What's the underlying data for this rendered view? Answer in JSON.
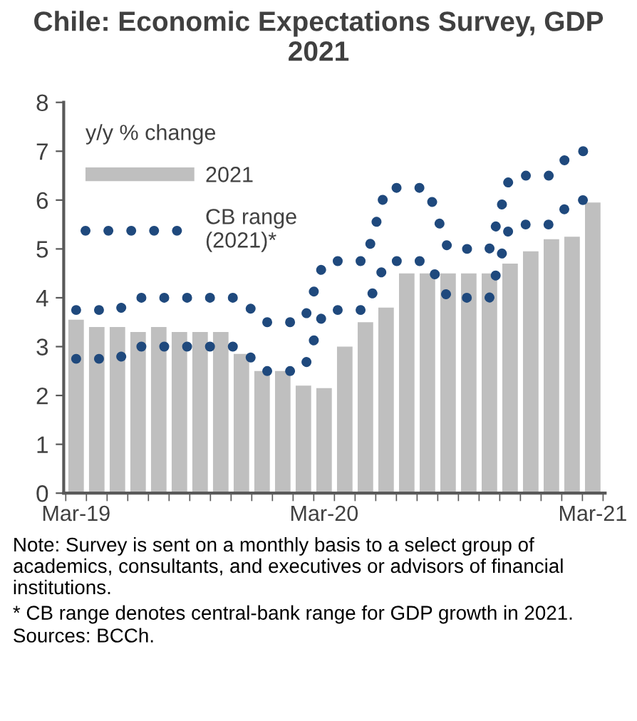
{
  "chart_data": {
    "type": "bar",
    "title": "Chile: Economic Expectations Survey, GDP 2021",
    "categories": [
      "Mar-19",
      null,
      null,
      null,
      null,
      null,
      null,
      null,
      null,
      null,
      null,
      null,
      "Mar-20",
      null,
      null,
      null,
      null,
      null,
      null,
      null,
      null,
      null,
      null,
      null,
      null,
      "Mar-21"
    ],
    "series": [
      {
        "name": "2021",
        "color": "#bfbfbf",
        "values": [
          3.55,
          3.4,
          3.4,
          3.3,
          3.4,
          3.3,
          3.3,
          3.3,
          2.85,
          2.5,
          2.5,
          2.2,
          2.15,
          3.0,
          3.5,
          3.8,
          4.5,
          4.5,
          4.5,
          4.5,
          4.5,
          4.7,
          4.95,
          5.2,
          5.25,
          5.95
        ]
      },
      {
        "name": "CB range (2021)*",
        "type": "line",
        "color": "#1f497d",
        "line_style": "dotted",
        "values": [
          3.75,
          3.75,
          3.75,
          4.0,
          4.0,
          4.0,
          4.0,
          4.0,
          4.0,
          3.5,
          3.5,
          3.5,
          4.75,
          4.75,
          4.75,
          6.25,
          6.25,
          6.25,
          5.0,
          5.0,
          5.0,
          6.5,
          6.5,
          6.5,
          7.0,
          7.0
        ]
      },
      {
        "type": "line",
        "color": "#1f497d",
        "line_style": "dotted",
        "values": [
          2.75,
          2.75,
          2.75,
          3.0,
          3.0,
          3.0,
          3.0,
          3.0,
          3.0,
          2.5,
          2.5,
          2.5,
          3.75,
          3.75,
          3.75,
          4.75,
          4.75,
          4.75,
          4.0,
          4.0,
          4.0,
          5.5,
          5.5,
          5.5,
          6.0,
          6.0
        ]
      }
    ],
    "ylim": [
      0,
      8
    ],
    "yticks": [
      0,
      1,
      2,
      3,
      4,
      5,
      6,
      7,
      8
    ],
    "legend": "top left",
    "legend_title": "y/y % change",
    "grid": false,
    "annotations": [
      "Note: Survey is sent on a monthly basis to a select group of academics, consultants, and executives or advisors of financial institutions.",
      "* CB range denotes central-bank range for GDP growth in 2021.",
      "Sources: BCCh."
    ]
  }
}
